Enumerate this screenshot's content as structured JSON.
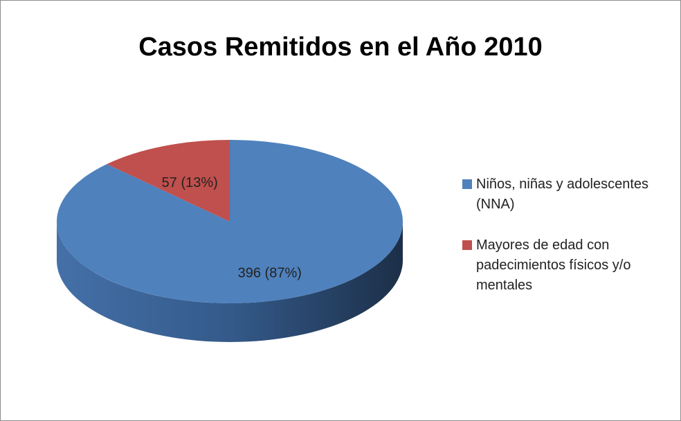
{
  "chart_data": {
    "type": "pie",
    "title": "Casos Remitidos en el Año 2010",
    "categories": [
      "Niños, niñas y adolescentes (NNA)",
      "Mayores de edad con padecimientos físicos y/o mentales"
    ],
    "values": [
      396,
      57
    ],
    "value_labels": [
      "396 (87%)",
      "57 (13%)"
    ],
    "colors": [
      "#4f81bd",
      "#c0504d"
    ],
    "legend": "right"
  }
}
